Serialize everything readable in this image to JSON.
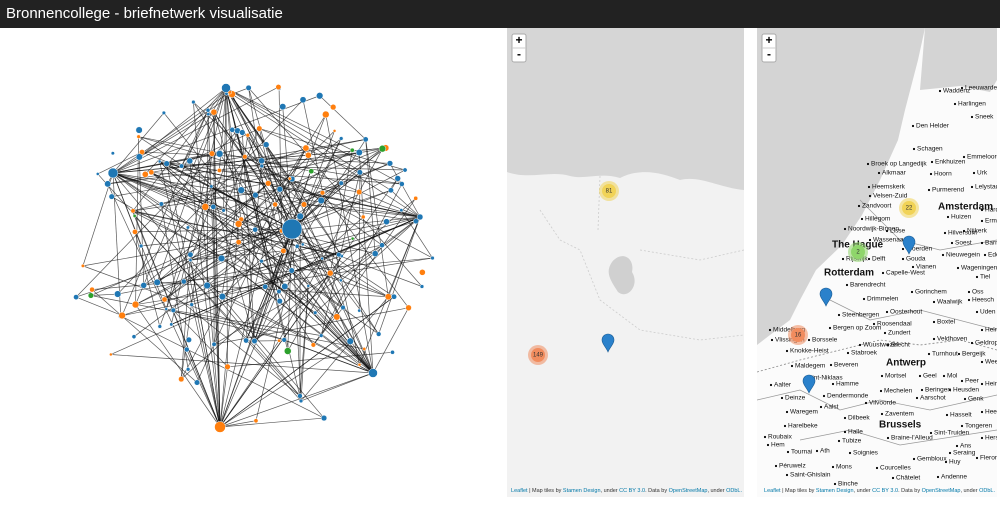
{
  "header": {
    "title": "Bronnencollege - briefnetwerk visualisatie"
  },
  "maps": [
    {
      "zoom_in": "+",
      "zoom_out": "-",
      "clusters": [
        81,
        149
      ],
      "attribution": [
        "Leaflet",
        " | Map tiles by ",
        "Stamen Design",
        ", under ",
        "CC BY 3.0",
        ". Data by ",
        "OpenStreetMap",
        ", under ",
        "ODbL."
      ]
    },
    {
      "zoom_in": "+",
      "zoom_out": "-",
      "clusters": [
        22,
        2,
        16
      ],
      "cities": [
        "Waddenz",
        "Leeuwarden",
        "Harlingen",
        "Sneek",
        "Den Helder",
        "Schagen",
        "Enkhuizen",
        "Emmeloord",
        "Broek op Langedijk",
        "Alkmaar",
        "Hoorn",
        "Urk",
        "Heemskerk",
        "Velsen-Zuid",
        "Purmerend",
        "Lelystad",
        "Zandvoort",
        "Amsterdam",
        "Hillegom",
        "Huizen",
        "Harderw",
        "Noordwijk-Binnen",
        "Lisse",
        "Hilversum",
        "Ermelo",
        "Nijkerk",
        "Wassenaar",
        "Woerden",
        "Soest",
        "Barnevel",
        "The Hague",
        "Ede",
        "Rijswijk",
        "Delft",
        "Gouda",
        "Nieuwegein",
        "Vianen",
        "Wageningen",
        "Tiel",
        "Rotterdam",
        "Capelle-West",
        "Barendrecht",
        "Gorinchem",
        "Oss",
        "Drimmelen",
        "Waalwijk",
        "Heesch",
        "Steenbergen",
        "Oosterhout",
        "Uden",
        "Roosendaal",
        "Boxtel",
        "Middelburg",
        "Bergen op Zoom",
        "Zundert",
        "Veldhoven",
        "Helmo",
        "Vlissingen",
        "Borssele",
        "Wuustwezel",
        "Brecht",
        "Geldrop",
        "Knokke-Heist",
        "Stabroek",
        "Antwerp",
        "Turnhout",
        "Bergeijk",
        "Maldegem",
        "Beveren",
        "Weert",
        "Sint-Niklaas",
        "Mortsel",
        "Geel",
        "Mol",
        "Peer",
        "Hamme",
        "Heusden",
        "Aalter",
        "Mechelen",
        "Beringen",
        "Hein",
        "Deinze",
        "Dendermonde",
        "Aarschot",
        "Genk",
        "Aalst",
        "Vilvoorde",
        "Waregem",
        "Zaventem",
        "Hasselt",
        "Heerl",
        "Dilbeek",
        "Harelbeke",
        "Brussels",
        "Tongeren",
        "Halle",
        "Sint-Truiden",
        "Roubaix",
        "Tubize",
        "Braine-l'Alleud",
        "Herstal",
        "Hem",
        "Tournai",
        "Ath",
        "Soignies",
        "Gembloux",
        "Ans",
        "Seraing",
        "Huy",
        "Fleron",
        "Péruwelz",
        "Mons",
        "Courcelles",
        "Saint-Ghislain",
        "Châtelet",
        "Andenne",
        "Binche"
      ],
      "attribution": [
        "Leaflet",
        " | Map tiles by ",
        "Stamen Design",
        ", under ",
        "CC BY 3.0",
        ". Data by ",
        "OpenStreetMap",
        ", under ",
        "ODbL."
      ]
    }
  ]
}
